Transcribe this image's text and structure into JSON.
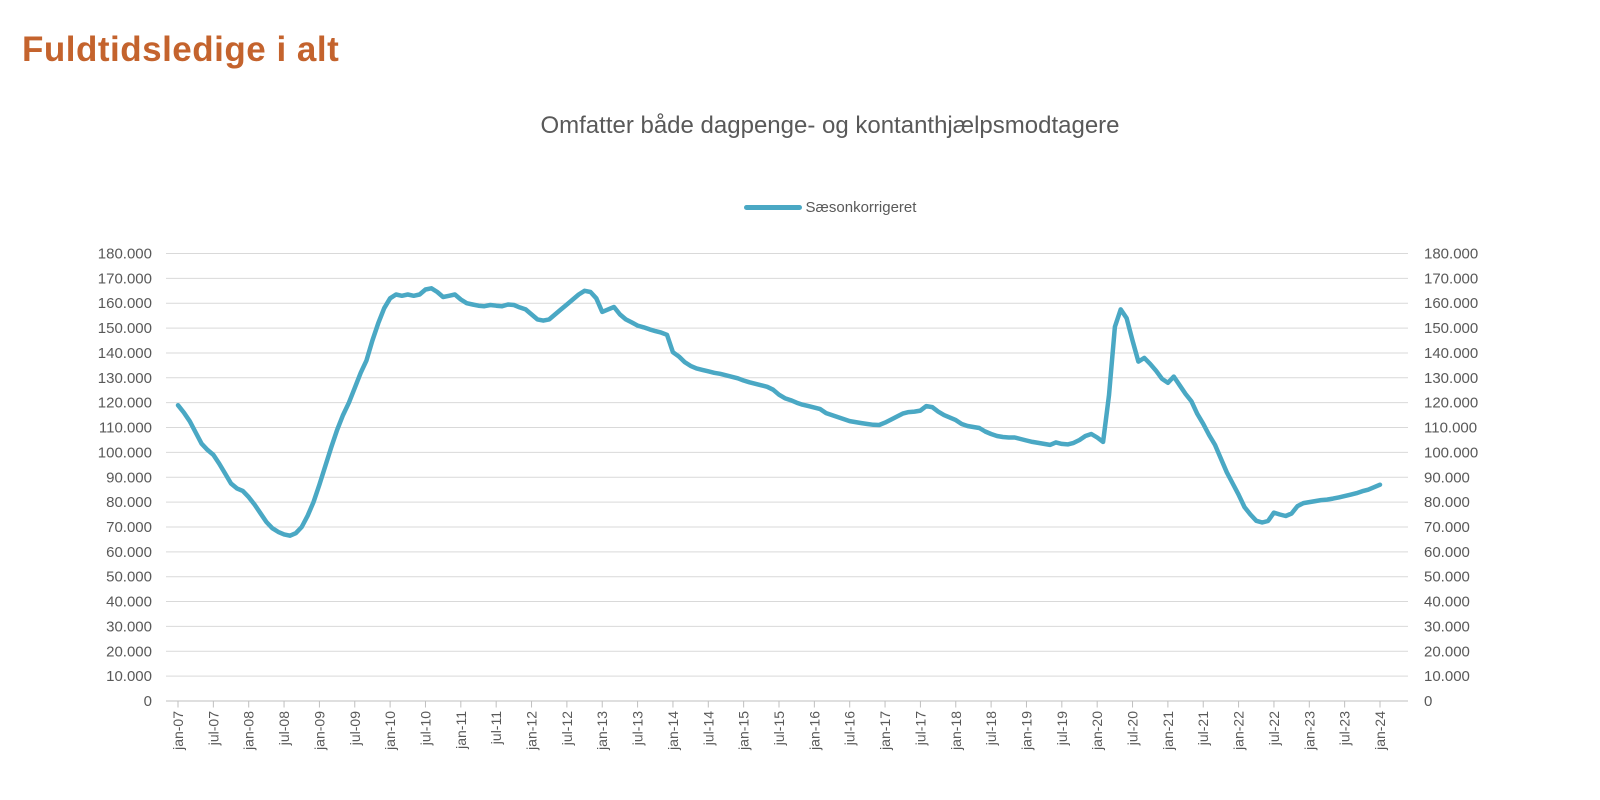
{
  "page": {
    "title": "Fuldtidsledige i alt"
  },
  "chart": {
    "subtitle": "Omfatter både dagpenge- og kontanthjælpsmodtagere",
    "legend": {
      "label": "Sæsonkorrigeret"
    }
  },
  "colors": {
    "title": "#C4632D",
    "series": "#4AA8C4",
    "text": "#595959",
    "gridline": "#D9D9D9",
    "axis": "#BFBFBF"
  },
  "chart_data": {
    "type": "line",
    "title": "Omfatter både dagpenge- og kontanthjælpsmodtagere",
    "series": [
      {
        "name": "Sæsonkorrigeret",
        "color": "#4AA8C4"
      }
    ],
    "x_start": "jan-07",
    "x_end": "jan-24",
    "x_frequency": "monthly",
    "x_tick_interval_months": 6,
    "x_tick_labels": [
      "jan-07",
      "jul-07",
      "jan-08",
      "jul-08",
      "jan-09",
      "jul-09",
      "jan-10",
      "jul-10",
      "jan-11",
      "jul-11",
      "jan-12",
      "jul-12",
      "jan-13",
      "jul-13",
      "jan-14",
      "jul-14",
      "jan-15",
      "jul-15",
      "jan-16",
      "jul-16",
      "jan-17",
      "jul-17",
      "jan-18",
      "jul-18",
      "jan-19",
      "jul-19",
      "jan-20",
      "jul-20",
      "jan-21",
      "jul-21",
      "jan-22",
      "jul-22",
      "jan-23",
      "jul-23",
      "jan-24"
    ],
    "ylim": [
      0,
      180000
    ],
    "y_step": 10000,
    "y_tick_labels": [
      "0",
      "10.000",
      "20.000",
      "30.000",
      "40.000",
      "50.000",
      "60.000",
      "70.000",
      "80.000",
      "90.000",
      "100.000",
      "110.000",
      "120.000",
      "130.000",
      "140.000",
      "150.000",
      "160.000",
      "170.000",
      "180.000"
    ],
    "grid": "horizontal",
    "legend_position": "top-center",
    "dual_y_axis_labels": true,
    "values": [
      119000,
      116000,
      112500,
      108000,
      103500,
      101000,
      99000,
      95500,
      91500,
      87500,
      85500,
      84500,
      82000,
      79000,
      75500,
      72000,
      69500,
      68000,
      67000,
      66500,
      67500,
      70000,
      74500,
      80000,
      87000,
      94500,
      102000,
      109000,
      115000,
      120000,
      126000,
      132000,
      137000,
      145000,
      152000,
      158000,
      162000,
      163500,
      163000,
      163500,
      163000,
      163500,
      165500,
      166000,
      164500,
      162500,
      163000,
      163500,
      161500,
      160000,
      159500,
      159000,
      158800,
      159300,
      159000,
      158800,
      159500,
      159300,
      158300,
      157500,
      155500,
      153500,
      153000,
      153500,
      155500,
      157500,
      159500,
      161500,
      163500,
      165000,
      164500,
      162000,
      156500,
      157500,
      158500,
      155500,
      153500,
      152300,
      151000,
      150300,
      149500,
      148800,
      148200,
      147300,
      140300,
      138600,
      136300,
      134800,
      133800,
      133200,
      132600,
      132000,
      131600,
      131000,
      130400,
      129800,
      128900,
      128200,
      127600,
      127000,
      126400,
      125200,
      123200,
      121800,
      121000,
      120000,
      119200,
      118600,
      118000,
      117400,
      115800,
      115000,
      114200,
      113400,
      112600,
      112200,
      111800,
      111400,
      111100,
      111000,
      112000,
      113200,
      114400,
      115600,
      116200,
      116400,
      116800,
      118600,
      118200,
      116400,
      115000,
      114000,
      113000,
      111400,
      110600,
      110200,
      109800,
      108400,
      107400,
      106600,
      106200,
      106000,
      106000,
      105400,
      104800,
      104200,
      103800,
      103400,
      103000,
      104000,
      103400,
      103200,
      103800,
      105000,
      106600,
      107400,
      106000,
      104200,
      123000,
      150500,
      157500,
      154000,
      145000,
      136500,
      138000,
      135600,
      132800,
      129600,
      128000,
      130500,
      127000,
      123500,
      120500,
      115500,
      111500,
      107000,
      103000,
      97500,
      92000,
      87500,
      83000,
      78000,
      75000,
      72500,
      71800,
      72400,
      75800,
      75000,
      74400,
      75400,
      78400,
      79600,
      80000,
      80400,
      80800,
      81000,
      81400,
      81900,
      82400,
      83000,
      83600,
      84400,
      85000,
      86000,
      87000
    ]
  }
}
